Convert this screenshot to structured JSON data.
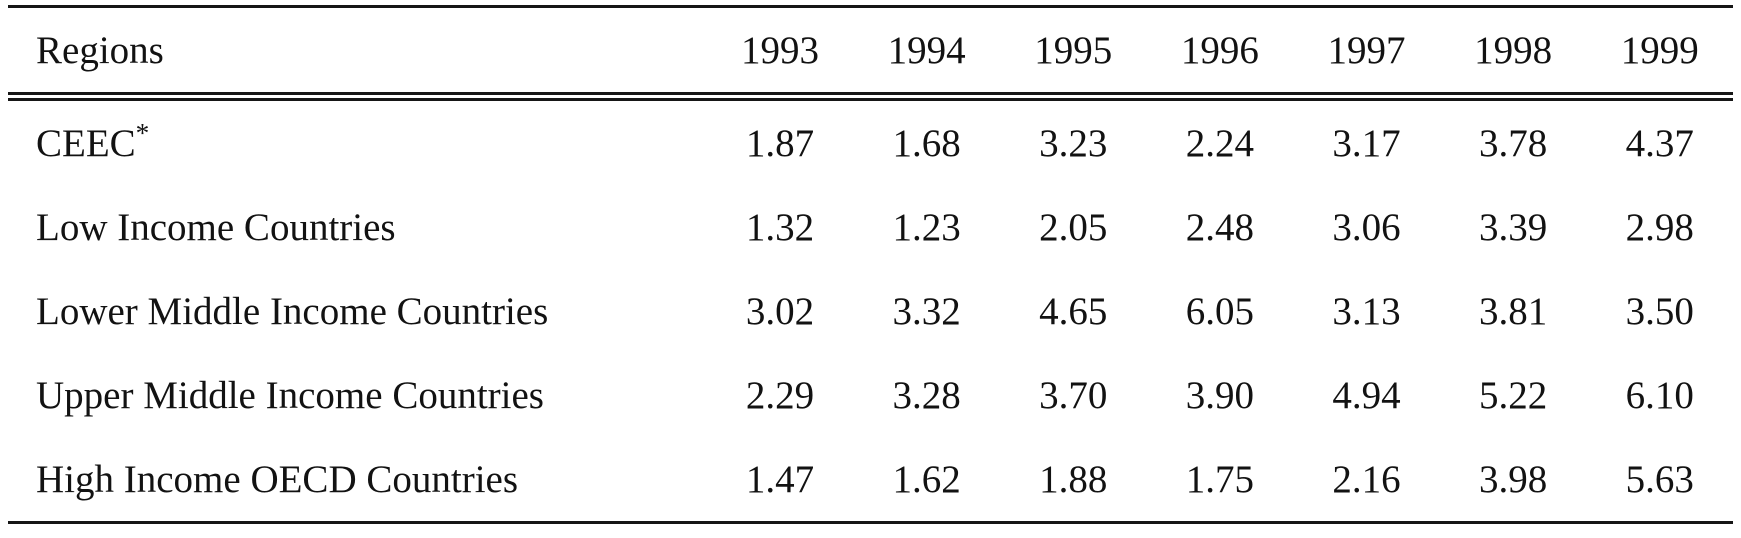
{
  "table": {
    "columns": [
      "Regions",
      "1993",
      "1994",
      "1995",
      "1996",
      "1997",
      "1998",
      "1999"
    ],
    "rows": [
      {
        "region": "CEEC*",
        "values": [
          "1.87",
          "1.68",
          "3.23",
          "2.24",
          "3.17",
          "3.78",
          "4.37"
        ]
      },
      {
        "region": "Low Income Countries",
        "values": [
          "1.32",
          "1.23",
          "2.05",
          "2.48",
          "3.06",
          "3.39",
          "2.98"
        ]
      },
      {
        "region": "Lower Middle Income Countries",
        "values": [
          "3.02",
          "3.32",
          "4.65",
          "6.05",
          "3.13",
          "3.81",
          "3.50"
        ]
      },
      {
        "region": "Upper Middle Income Countries",
        "values": [
          "2.29",
          "3.28",
          "3.70",
          "3.90",
          "4.94",
          "5.22",
          "6.10"
        ]
      },
      {
        "region": "High Income OECD Countries",
        "values": [
          "1.47",
          "1.62",
          "1.88",
          "1.75",
          "2.16",
          "3.98",
          "5.63"
        ]
      }
    ],
    "colors": {
      "text": "#121212",
      "rule": "#161616",
      "background": "#ffffff"
    }
  }
}
